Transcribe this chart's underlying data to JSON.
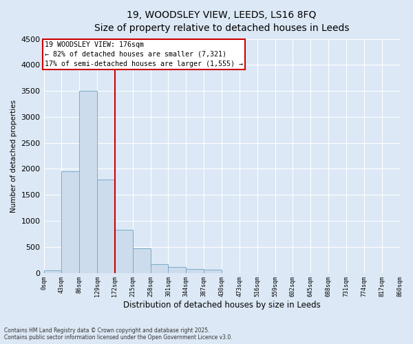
{
  "title_line1": "19, WOODSLEY VIEW, LEEDS, LS16 8FQ",
  "title_line2": "Size of property relative to detached houses in Leeds",
  "xlabel": "Distribution of detached houses by size in Leeds",
  "ylabel": "Number of detached properties",
  "annotation_line1": "19 WOODSLEY VIEW: 176sqm",
  "annotation_line2": "← 82% of detached houses are smaller (7,321)",
  "annotation_line3": "17% of semi-detached houses are larger (1,555) →",
  "vline_x": 172,
  "bar_edges": [
    0,
    43,
    86,
    129,
    172,
    215,
    258,
    301,
    344,
    387,
    430,
    473,
    516,
    559,
    602,
    645,
    688,
    731,
    774,
    817,
    860
  ],
  "bar_heights": [
    50,
    1950,
    3500,
    1800,
    830,
    470,
    170,
    120,
    70,
    60,
    0,
    0,
    0,
    0,
    0,
    0,
    0,
    0,
    0,
    0
  ],
  "bar_color": "#ccdcec",
  "bar_edge_color": "#7aaac8",
  "vline_color": "#cc0000",
  "annotation_box_edge_color": "#cc0000",
  "fig_bg_color": "#dce8f5",
  "plot_bg_color": "#dce8f5",
  "grid_color": "#ffffff",
  "ylim": [
    0,
    4500
  ],
  "yticks": [
    0,
    500,
    1000,
    1500,
    2000,
    2500,
    3000,
    3500,
    4000,
    4500
  ],
  "footer_line1": "Contains HM Land Registry data © Crown copyright and database right 2025.",
  "footer_line2": "Contains public sector information licensed under the Open Government Licence v3.0."
}
